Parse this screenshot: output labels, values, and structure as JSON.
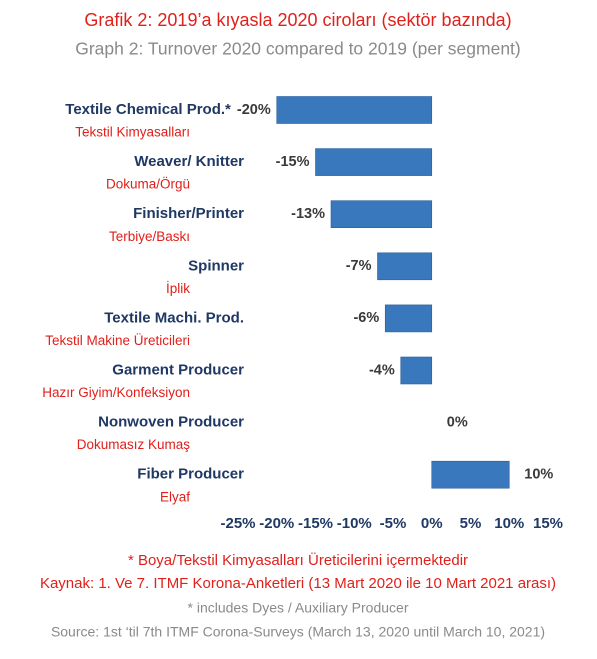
{
  "chart_data": {
    "type": "bar",
    "orientation": "horizontal",
    "title": "Grafik 2: 2019’a kıyasla 2020 ciroları (sektör bazında)",
    "subtitle": "Graph 2: Turnover 2020 compared to 2019 (per segment)",
    "categories": [
      "Textile Chemical Prod.*",
      "Weaver/ Knitter",
      "Finisher/Printer",
      "Spinner",
      "Textile Machi. Prod.",
      "Garment Producer",
      "Nonwoven Producer",
      "Fiber Producer"
    ],
    "subcategories": [
      "Tekstil Kimyasalları",
      "Dokuma/Örgü",
      "Terbiye/Baskı",
      "İplik",
      "Tekstil Makine Üreticileri",
      "Hazır Giyim/Konfeksiyon",
      "Dokumasız Kumaş",
      "Elyaf"
    ],
    "values": [
      -20,
      -15,
      -13,
      -7,
      -6,
      -4,
      0,
      10
    ],
    "value_labels": [
      "-20%",
      "-15%",
      "-13%",
      "-7%",
      "-6%",
      "-4%",
      "0%",
      "10%"
    ],
    "color": "#3a78bd",
    "xlim": [
      -25,
      15
    ],
    "xticks": [
      {
        "value": -25,
        "label": "-25%"
      },
      {
        "value": -20,
        "label": "-20%"
      },
      {
        "value": -15,
        "label": "-15%"
      },
      {
        "value": -10,
        "label": "-10%"
      },
      {
        "value": -5,
        "label": "-5%"
      },
      {
        "value": 0,
        "label": "0%"
      },
      {
        "value": 5,
        "label": "5%"
      },
      {
        "value": 10,
        "label": "10%"
      },
      {
        "value": 15,
        "label": "15%"
      }
    ],
    "notes": [
      "* Boya/Tekstil Kimyasalları Üreticilerini içermektedir",
      "Kaynak: 1. Ve 7.  ITMF Korona-Anketleri (13 Mart 2020 ile 10 Mart 2021 arası)",
      "* includes Dyes / Auxiliary Producer",
      "Source: 1st ‘til 7th ITMF Corona-Surveys (March 13, 2020 until March 10, 2021)"
    ]
  }
}
